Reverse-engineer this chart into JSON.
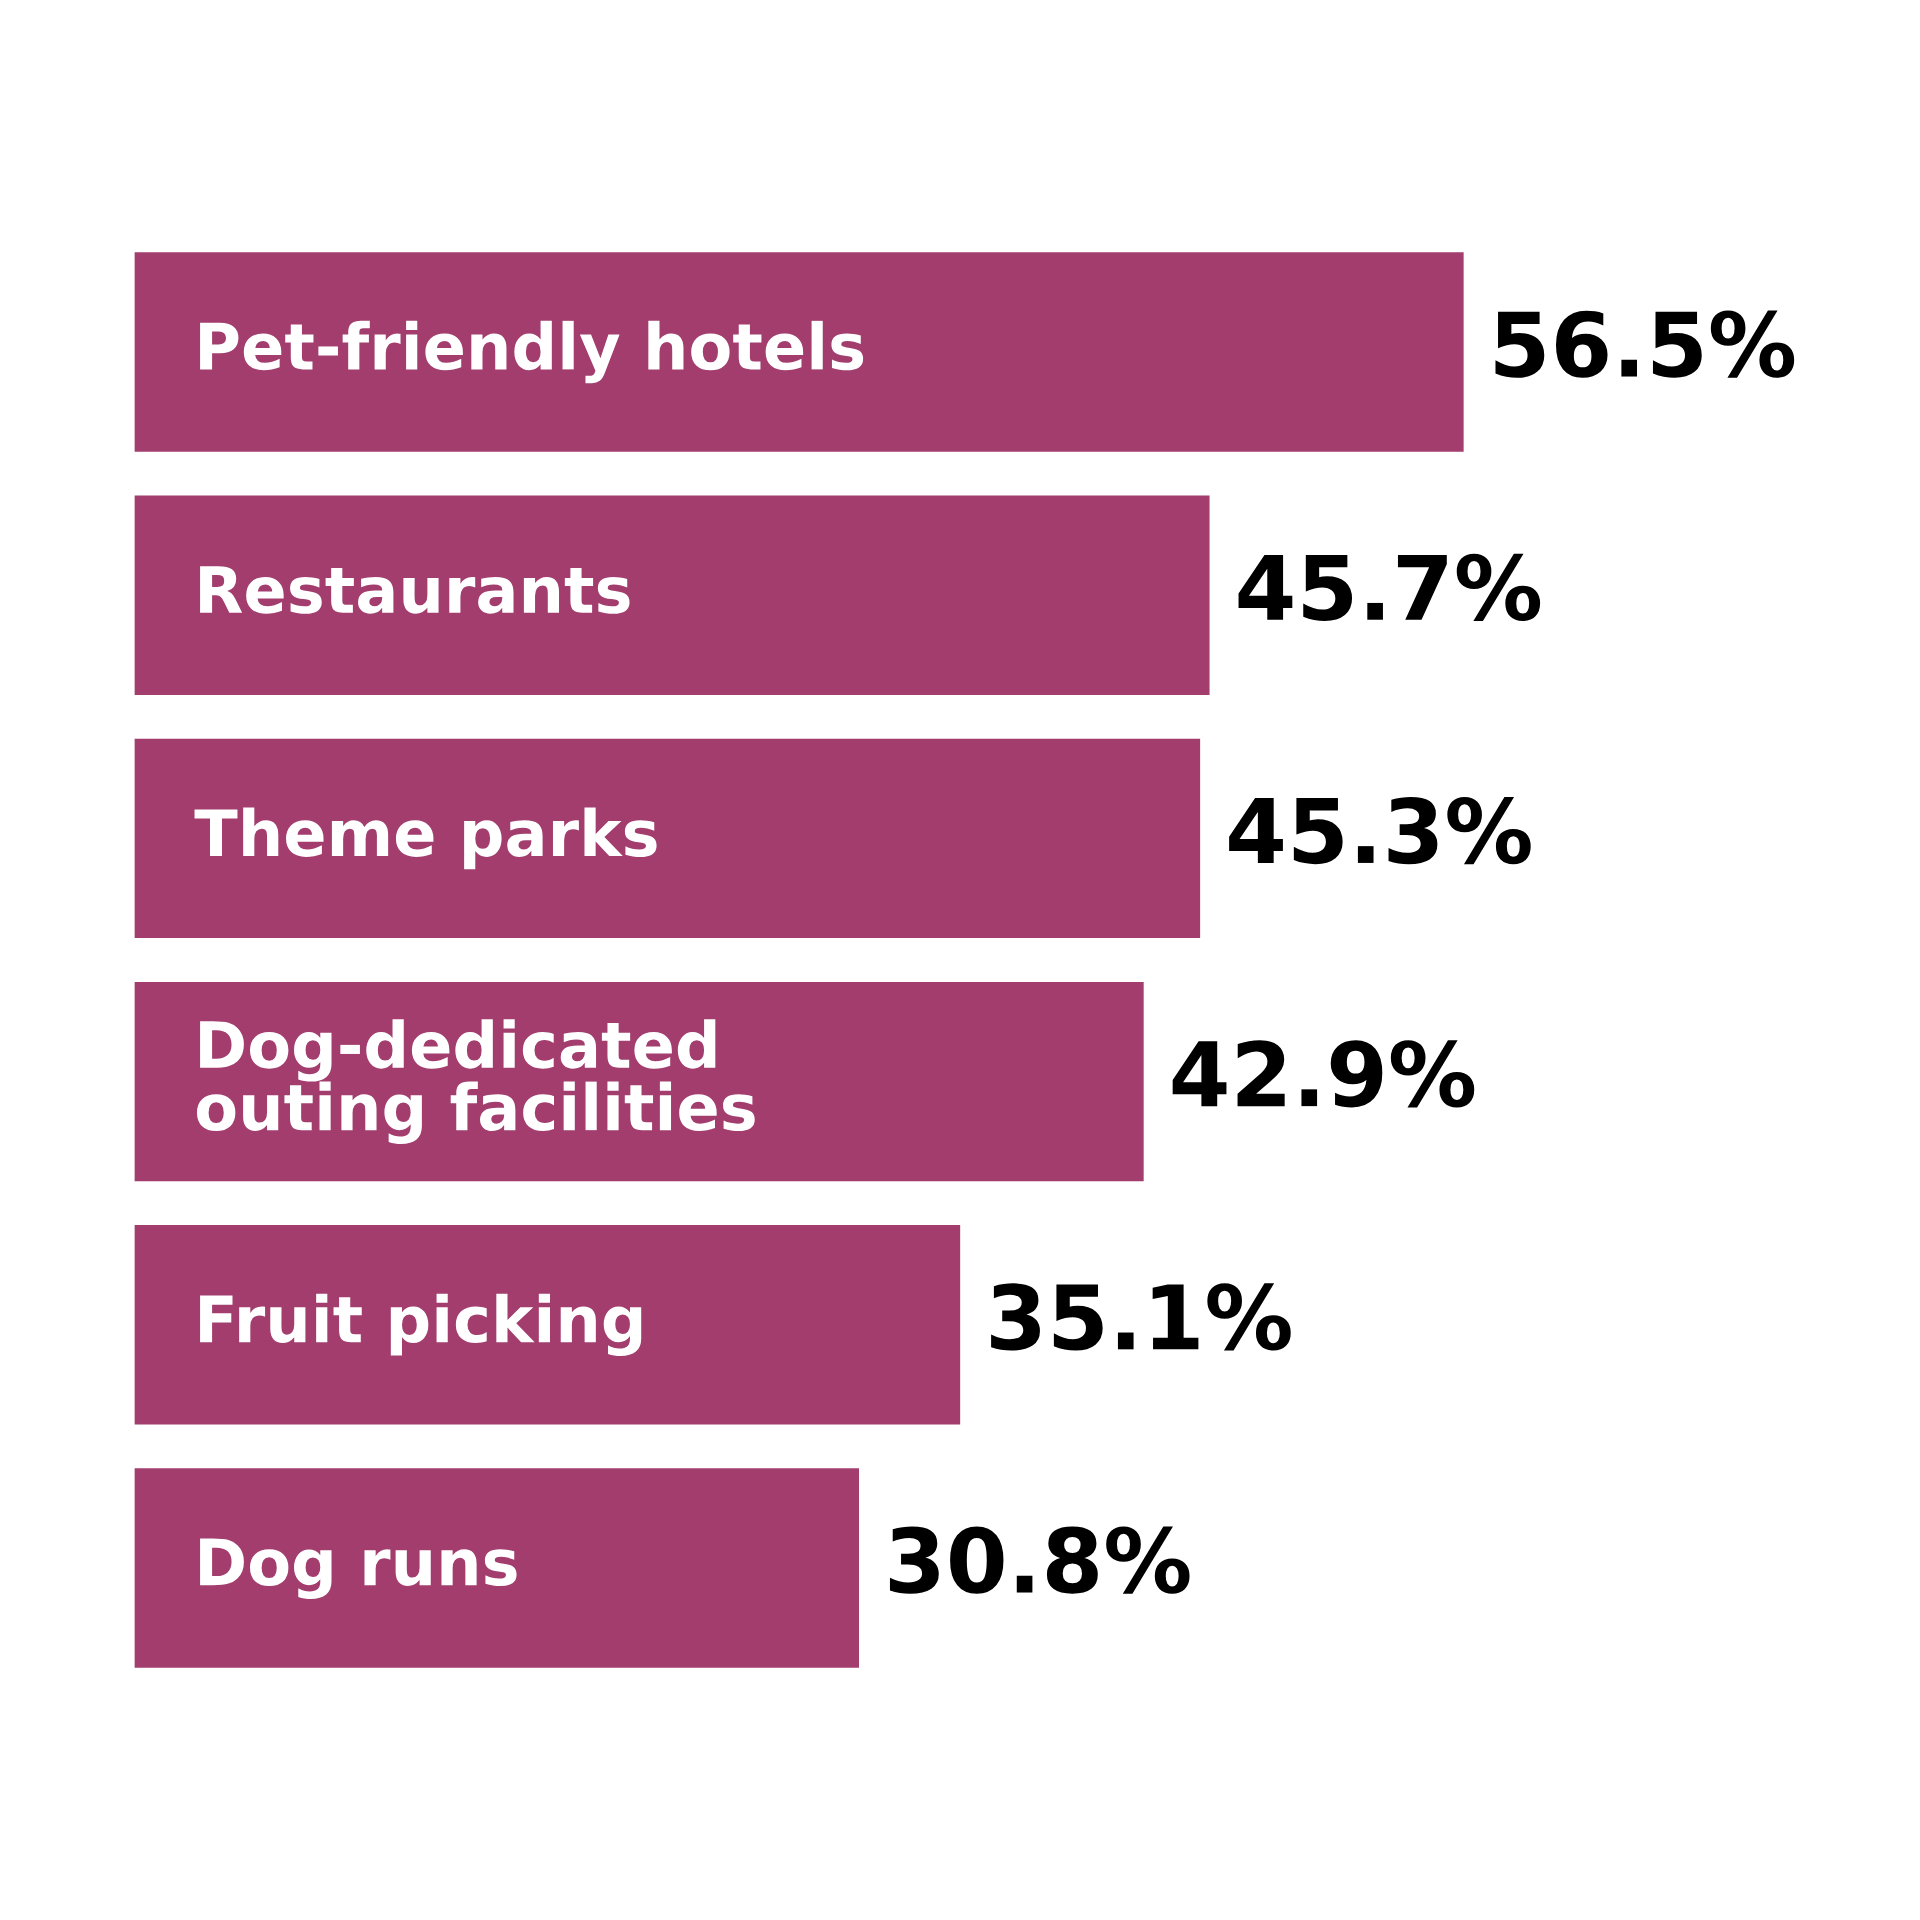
{
  "chart_data": {
    "type": "bar",
    "orientation": "horizontal",
    "categories": [
      "Pet-friendly hotels",
      "Restaurants",
      "Theme parks",
      "Dog-dedicated\nouting facilities",
      "Fruit picking",
      "Dog runs"
    ],
    "values": [
      56.5,
      45.7,
      45.3,
      42.9,
      35.1,
      30.8
    ],
    "value_labels": [
      "56.5%",
      "45.7%",
      "45.3%",
      "42.9%",
      "35.1%",
      "30.8%"
    ],
    "color": "#a23d6e"
  }
}
